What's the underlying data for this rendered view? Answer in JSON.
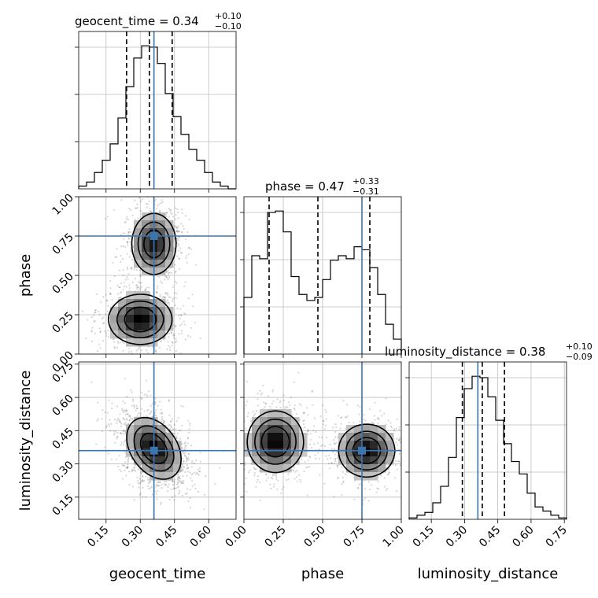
{
  "chart_data": {
    "type": "corner",
    "truth_color": "#3b75af",
    "parameters": [
      {
        "name": "geocent_time",
        "axis_label": "geocent_time",
        "lim": [
          0.03,
          0.72
        ],
        "ticks": [
          "0.15",
          "0.30",
          "0.45",
          "0.60"
        ],
        "tick_values": [
          0.15,
          0.3,
          0.45,
          0.6
        ],
        "truth": 0.36
      },
      {
        "name": "phase",
        "axis_label": "phase",
        "lim": [
          0.0,
          1.0
        ],
        "ticks": [
          "0.00",
          "0.25",
          "0.50",
          "0.75",
          "1.00"
        ],
        "tick_values": [
          0.0,
          0.25,
          0.5,
          0.75,
          1.0
        ],
        "truth": 0.75
      },
      {
        "name": "luminosity_distance",
        "axis_label": "luminosity_distance",
        "lim": [
          0.05,
          0.76
        ],
        "ticks": [
          "0.15",
          "0.30",
          "0.45",
          "0.60",
          "0.75"
        ],
        "tick_values": [
          0.15,
          0.3,
          0.45,
          0.6,
          0.75
        ],
        "truth": 0.36
      }
    ],
    "titles": [
      {
        "name": "geocent_time",
        "text": "geocent_time = 0.34",
        "sup": "+0.10",
        "sub": "−0.10"
      },
      {
        "name": "phase",
        "text": "phase = 0.47",
        "sup": "+0.33",
        "sub": "−0.31"
      },
      {
        "name": "luminosity_distance",
        "text": "luminosity_distance = 0.38",
        "sup": "+0.10",
        "sub": "−0.09"
      }
    ],
    "quantiles": [
      [
        0.24,
        0.34,
        0.44
      ],
      [
        0.16,
        0.47,
        0.8
      ],
      [
        0.29,
        0.38,
        0.48
      ]
    ],
    "histograms": [
      {
        "edges_lim": [
          0.03,
          0.72
        ],
        "edges": [
          0.03,
          0.0645,
          0.099,
          0.1335,
          0.168,
          0.2025,
          0.237,
          0.2715,
          0.306,
          0.3405,
          0.375,
          0.4095,
          0.444,
          0.4785,
          0.513,
          0.5475,
          0.582,
          0.6165,
          0.651,
          0.6855,
          0.72
        ],
        "counts": [
          2,
          5,
          12,
          21,
          33,
          52,
          75,
          96,
          105,
          104,
          92,
          70,
          53,
          40,
          29,
          21,
          12,
          5,
          2,
          0
        ]
      },
      {
        "edges_lim": [
          0.0,
          1.0
        ],
        "edges": [
          0.0,
          0.05,
          0.1,
          0.15,
          0.2,
          0.25,
          0.3,
          0.35,
          0.4,
          0.45,
          0.5,
          0.55,
          0.6,
          0.65,
          0.7,
          0.75,
          0.8,
          0.85,
          0.9,
          0.95,
          1.0
        ],
        "counts": [
          38,
          66,
          64,
          95,
          96,
          82,
          52,
          40,
          36,
          38,
          50,
          63,
          66,
          64,
          72,
          70,
          58,
          40,
          20,
          10
        ]
      },
      {
        "edges_lim": [
          0.05,
          0.76
        ],
        "edges": [
          0.05,
          0.0855,
          0.121,
          0.1565,
          0.192,
          0.2275,
          0.263,
          0.2985,
          0.334,
          0.3695,
          0.405,
          0.4405,
          0.476,
          0.5115,
          0.547,
          0.5825,
          0.618,
          0.6535,
          0.689,
          0.7245,
          0.76
        ],
        "counts": [
          1,
          3,
          5,
          12,
          24,
          45,
          74,
          95,
          104,
          103,
          89,
          72,
          55,
          42,
          33,
          19,
          9,
          6,
          3,
          1
        ]
      }
    ],
    "density_panels": [
      {
        "x": "geocent_time",
        "y": "phase",
        "modes": [
          {
            "x": 0.36,
            "y": 0.7,
            "sx": 0.05,
            "sy": 0.1,
            "w": 1.0
          },
          {
            "x": 0.3,
            "y": 0.22,
            "sx": 0.07,
            "sy": 0.08,
            "w": 1.1
          }
        ]
      },
      {
        "x": "geocent_time",
        "y": "luminosity_distance",
        "modes": [
          {
            "x": 0.36,
            "y": 0.37,
            "sx": 0.06,
            "sy": 0.07,
            "w": 1.0,
            "rho": -0.35
          }
        ]
      },
      {
        "x": "phase",
        "y": "luminosity_distance",
        "modes": [
          {
            "x": 0.2,
            "y": 0.4,
            "sx": 0.09,
            "sy": 0.07,
            "w": 1.0
          },
          {
            "x": 0.78,
            "y": 0.36,
            "sx": 0.09,
            "sy": 0.06,
            "w": 1.0
          }
        ]
      }
    ]
  }
}
